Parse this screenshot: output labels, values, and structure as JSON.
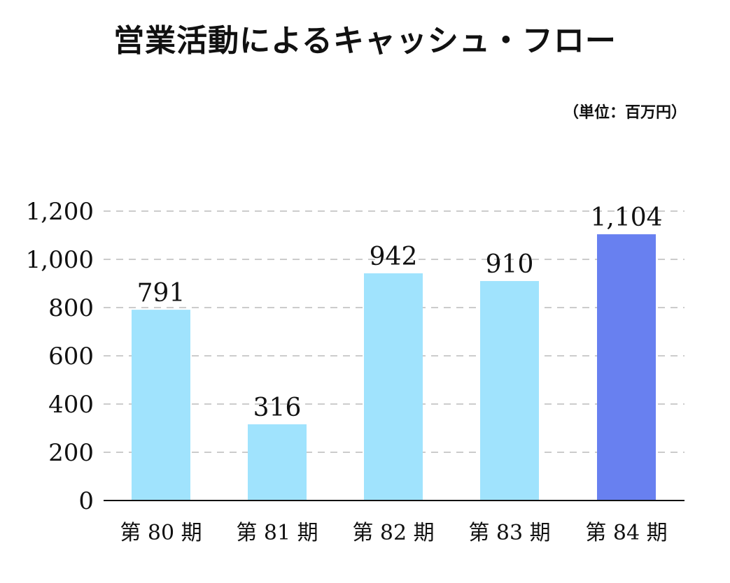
{
  "title": "営業活動によるキャッシュ・フロー",
  "unit": "（単位：百万円）",
  "chart_data": {
    "type": "bar",
    "title": "営業活動によるキャッシュ・フロー",
    "unit": "（単位：百万円）",
    "categories": [
      "第 80 期",
      "第 81 期",
      "第 82 期",
      "第 83 期",
      "第 84 期"
    ],
    "values": [
      791,
      316,
      942,
      910,
      1104
    ],
    "value_labels": [
      "791",
      "316",
      "942",
      "910",
      "1,104"
    ],
    "ylim": [
      0,
      1200
    ],
    "yticks": [
      0,
      200,
      400,
      600,
      800,
      1000,
      1200
    ],
    "ytick_labels": [
      "0",
      "200",
      "400",
      "600",
      "800",
      "1,000",
      "1,200"
    ],
    "grid": true,
    "colors": {
      "default_bar": "#a0e3fd",
      "highlight_bar": "#6880f0",
      "grid": "#cccccc",
      "axis": "#111111"
    },
    "highlight_index": 4
  }
}
